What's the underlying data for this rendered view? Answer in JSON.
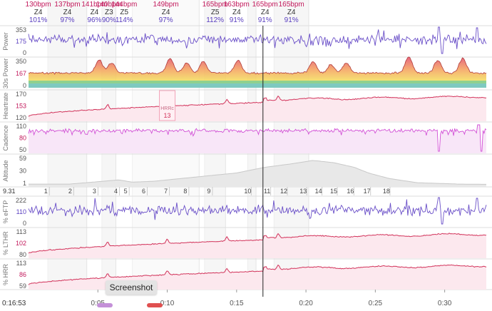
{
  "colors": {
    "power": "#6a4fc8",
    "heartrate": "#d2325a",
    "heartrate_fill": "#fce8ee",
    "cadence": "#d24fd6",
    "cadence_fill": "#f8e6f8",
    "altitude_fill": "#e8e8e8",
    "altitude_line": "#c8c8c8",
    "zone_label": "#333333",
    "bpm": "#c2185b",
    "pct": "#5a3fc0",
    "smooth_high": "#e24a6a",
    "smooth_mid": "#f5a35a",
    "smooth_low": "#f3dc5a",
    "band_green": "#8fd18f",
    "band_teal": "#7ec9c0"
  },
  "domain": [
    0,
    33
  ],
  "intervals": [
    {
      "start": 0.0,
      "end": 1.4,
      "bpm": "130bpm",
      "zone": "Z4",
      "pct": "101%"
    },
    {
      "start": 1.4,
      "end": 4.2,
      "bpm": "137bpm",
      "zone": "Z4",
      "pct": "97%"
    },
    {
      "start": 4.2,
      "end": 5.3,
      "bpm": "141bpm",
      "zone": "Z4",
      "pct": "96%"
    },
    {
      "start": 5.3,
      "end": 6.3,
      "bpm": "140bpm",
      "zone": "Z3",
      "pct": "90%"
    },
    {
      "start": 6.3,
      "end": 7.5,
      "bpm": "144bpm",
      "zone": "Z5",
      "pct": "114%"
    },
    {
      "start": 7.5,
      "end": 12.3,
      "bpm": "149bpm",
      "zone": "Z4",
      "pct": "97%"
    },
    {
      "start": 12.3,
      "end": 12.7,
      "bpm": "",
      "zone": "",
      "pct": ""
    },
    {
      "start": 12.7,
      "end": 14.2,
      "bpm": "165bpm",
      "zone": "Z5",
      "pct": "112%"
    },
    {
      "start": 14.2,
      "end": 15.8,
      "bpm": "163bpm",
      "zone": "Z4",
      "pct": "91%"
    },
    {
      "start": 15.8,
      "end": 16.4,
      "bpm": "",
      "zone": "",
      "pct": ""
    },
    {
      "start": 16.4,
      "end": 17.7,
      "bpm": "165bpm",
      "zone": "Z4",
      "pct": "91%"
    },
    {
      "start": 17.7,
      "end": 20.2,
      "bpm": "165bpm",
      "zone": "Z4",
      "pct": "91%"
    }
  ],
  "charts": [
    {
      "id": "power",
      "label": "Power",
      "ticks": [
        "353",
        "175",
        "0"
      ],
      "tick_colors": [
        "#555555",
        "#5a3fc0",
        "#555555"
      ]
    },
    {
      "id": "smooth",
      "label": "30s Power",
      "ticks": [
        "350",
        "167",
        "0"
      ],
      "tick_colors": [
        "#555555",
        "#c2185b",
        "#555555"
      ]
    },
    {
      "id": "hr",
      "label": "Heartrate",
      "ticks": [
        "170",
        "153",
        "120"
      ],
      "tick_colors": [
        "#555555",
        "#c2185b",
        "#555555"
      ]
    },
    {
      "id": "cad",
      "label": "Cadence",
      "ticks": [
        "110",
        "80",
        "50"
      ],
      "tick_colors": [
        "#555555",
        "#c2185b",
        "#555555"
      ]
    },
    {
      "id": "alt",
      "label": "Altitude",
      "ticks": [
        "59",
        "30",
        "1"
      ],
      "tick_colors": [
        "#555555",
        "#555555",
        "#555555"
      ]
    },
    {
      "id": "eftp",
      "label": "% eFTP",
      "ticks": [
        "222",
        "110",
        "0"
      ],
      "tick_colors": [
        "#555555",
        "#5a3fc0",
        "#555555"
      ]
    },
    {
      "id": "lthr",
      "label": "% LTHR",
      "ticks": [
        "113",
        "102",
        "80"
      ],
      "tick_colors": [
        "#555555",
        "#c2185b",
        "#555555"
      ]
    },
    {
      "id": "hrr",
      "label": "% HRR",
      "ticks": [
        "113",
        "86",
        "59"
      ],
      "tick_colors": [
        "#555555",
        "#c2185b",
        "#555555"
      ]
    }
  ],
  "hr_marker": {
    "label": "HRRc",
    "value": "13",
    "x": 10.0
  },
  "lap_bar": {
    "start_label": "9.31",
    "laps": [
      {
        "n": "1",
        "x": 1.25
      },
      {
        "n": "2",
        "x": 3.0
      },
      {
        "n": "3",
        "x": 4.75
      },
      {
        "n": "4",
        "x": 6.3
      },
      {
        "n": "5",
        "x": 7.0
      },
      {
        "n": "6",
        "x": 8.3
      },
      {
        "n": "7",
        "x": 9.9
      },
      {
        "n": "8",
        "x": 11.3
      },
      {
        "n": "9",
        "x": 13.0
      },
      {
        "n": "10",
        "x": 15.8
      },
      {
        "n": "11",
        "x": 17.2
      },
      {
        "n": "12",
        "x": 18.4
      },
      {
        "n": "13",
        "x": 19.8
      },
      {
        "n": "14",
        "x": 20.9
      },
      {
        "n": "15",
        "x": 22.0
      },
      {
        "n": "16",
        "x": 23.2
      },
      {
        "n": "17",
        "x": 24.4
      },
      {
        "n": "18",
        "x": 25.8
      }
    ]
  },
  "cursor": {
    "x": 16.9,
    "time": "0:16:53"
  },
  "time_axis": [
    {
      "label": "0:05",
      "x": 5
    },
    {
      "label": "0:10",
      "x": 10
    },
    {
      "label": "0:15",
      "x": 15
    },
    {
      "label": "0:20",
      "x": 20
    },
    {
      "label": "0:25",
      "x": 25
    },
    {
      "label": "0:30",
      "x": 30
    }
  ],
  "tooltip": {
    "text": "Screenshot"
  }
}
